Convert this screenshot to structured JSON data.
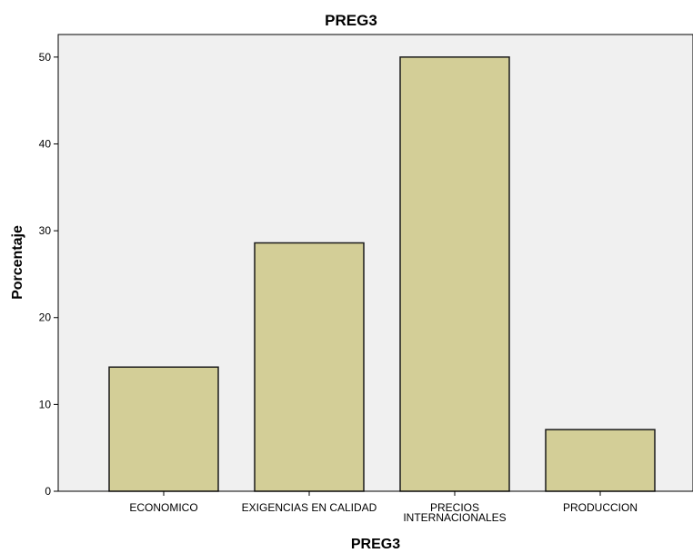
{
  "chart_data": {
    "type": "bar",
    "title": "PREG3",
    "xlabel": "PREG3",
    "ylabel": "Porcentaje",
    "categories": [
      "ECONOMICO",
      "EXIGENCIAS EN CALIDAD",
      "PRECIOS INTERNACIONALES",
      "PRODUCCION"
    ],
    "category_label_lines": [
      [
        "ECONOMICO"
      ],
      [
        "EXIGENCIAS EN CALIDAD"
      ],
      [
        "PRECIOS",
        "INTERNACIONALES"
      ],
      [
        "PRODUCCION"
      ]
    ],
    "values": [
      14.3,
      28.6,
      50.0,
      7.1
    ],
    "ylim": [
      0,
      52.6
    ],
    "yticks": [
      0,
      10,
      20,
      30,
      40,
      50
    ],
    "grid": false,
    "colors": {
      "bar_fill": "#D3CE97",
      "bar_stroke": "#1a1a1a",
      "plot_background": "#F0F0F0",
      "axis": "#000000"
    }
  }
}
